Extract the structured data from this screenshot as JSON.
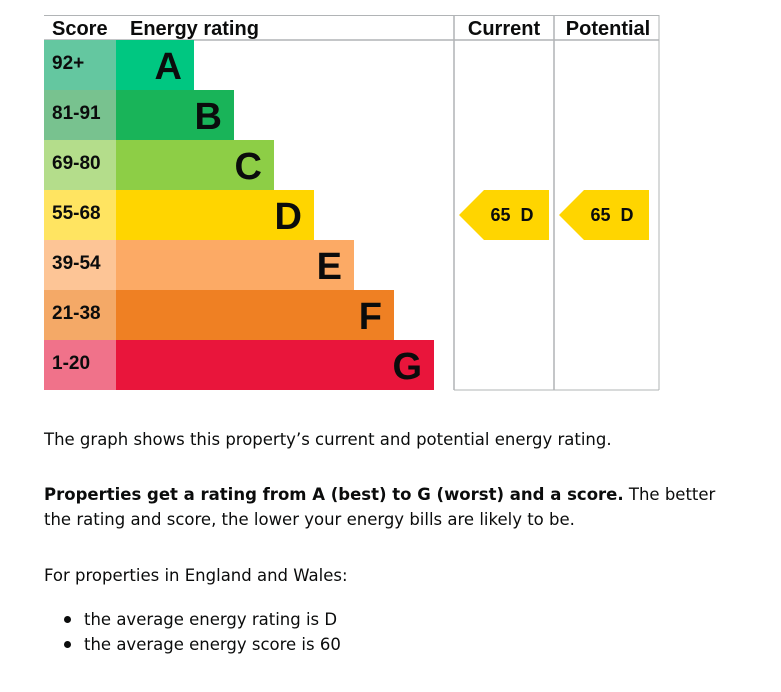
{
  "chart_data": {
    "type": "table",
    "headers": {
      "score": "Score",
      "rating": "Energy rating",
      "current": "Current",
      "potential": "Potential"
    },
    "bands": [
      {
        "range": "92+",
        "letter": "A",
        "color": "#00c781",
        "score_bg": "#64c7a0"
      },
      {
        "range": "81-91",
        "letter": "B",
        "color": "#19b459",
        "score_bg": "#78c28f"
      },
      {
        "range": "69-80",
        "letter": "C",
        "color": "#8dce46",
        "score_bg": "#b4dd8b"
      },
      {
        "range": "55-68",
        "letter": "D",
        "color": "#ffd500",
        "score_bg": "#ffe461"
      },
      {
        "range": "39-54",
        "letter": "E",
        "color": "#fcaa65",
        "score_bg": "#fdc596"
      },
      {
        "range": "21-38",
        "letter": "F",
        "color": "#ef8023",
        "score_bg": "#f4a967"
      },
      {
        "range": "1-20",
        "letter": "G",
        "color": "#e9153b",
        "score_bg": "#f0728a"
      }
    ],
    "current": {
      "score": 65,
      "letter": "D",
      "label": "65  D",
      "color": "#ffd500"
    },
    "potential": {
      "score": 65,
      "letter": "D",
      "label": "65  D",
      "color": "#ffd500"
    }
  },
  "text": {
    "intro": "The graph shows this property’s current and potential energy rating.",
    "rating_bold": "Properties get a rating from A (best) to G (worst) and a score.",
    "rating_rest": " The better the rating and score, the lower your energy bills are likely to be.",
    "average_intro": "For properties in England and Wales:",
    "bullets": [
      "the average energy rating is D",
      "the average energy score is 60"
    ]
  }
}
